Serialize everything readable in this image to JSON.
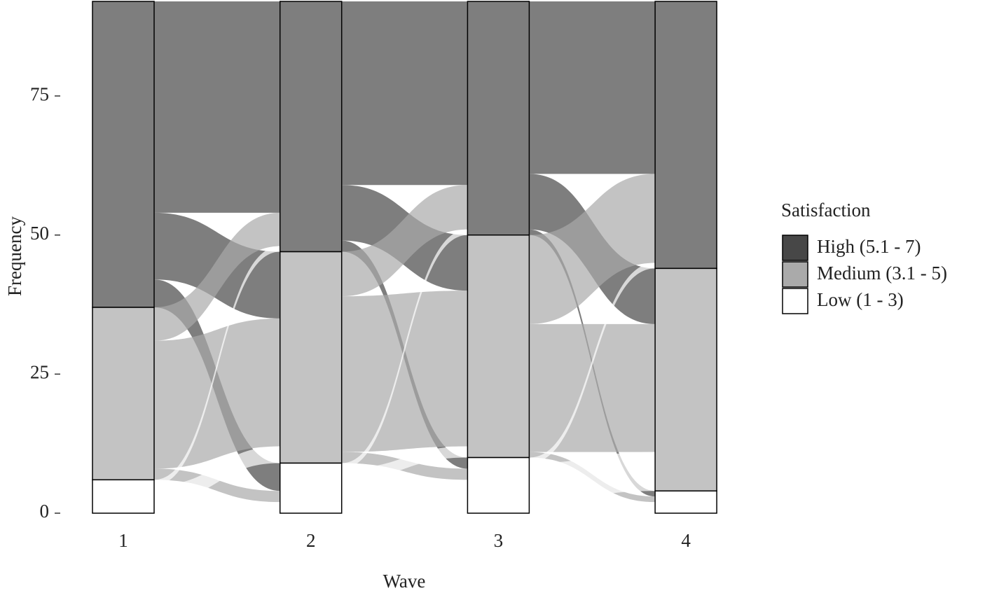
{
  "chart_data": {
    "type": "alluvial",
    "title": "Satisfaction",
    "xlabel": "Wave",
    "ylabel": "Frequency",
    "categories": [
      "1",
      "2",
      "3",
      "4"
    ],
    "ylim": [
      0,
      92
    ],
    "yticks": [
      0,
      25,
      50,
      75
    ],
    "alpha": 0.7,
    "strata": [
      {
        "name": "High (5.1 - 7)",
        "color": "#474747",
        "values": [
          55,
          45,
          42,
          48
        ]
      },
      {
        "name": "Medium (3.1 - 5)",
        "color": "#aaaaaa",
        "values": [
          31,
          38,
          40,
          40
        ]
      },
      {
        "name": "Low (1 - 3)",
        "color": "#ffffff",
        "values": [
          6,
          9,
          10,
          4
        ]
      }
    ],
    "flows": [
      [
        {
          "from": "High (5.1 - 7)",
          "to": "High (5.1 - 7)",
          "value": 38
        },
        {
          "from": "High (5.1 - 7)",
          "to": "Medium (3.1 - 5)",
          "value": 12
        },
        {
          "from": "High (5.1 - 7)",
          "to": "Low (1 - 3)",
          "value": 5
        },
        {
          "from": "Medium (3.1 - 5)",
          "to": "High (5.1 - 7)",
          "value": 6
        },
        {
          "from": "Medium (3.1 - 5)",
          "to": "Medium (3.1 - 5)",
          "value": 23
        },
        {
          "from": "Medium (3.1 - 5)",
          "to": "Low (1 - 3)",
          "value": 2
        },
        {
          "from": "Low (1 - 3)",
          "to": "High (5.1 - 7)",
          "value": 1
        },
        {
          "from": "Low (1 - 3)",
          "to": "Medium (3.1 - 5)",
          "value": 3
        },
        {
          "from": "Low (1 - 3)",
          "to": "Low (1 - 3)",
          "value": 2
        }
      ],
      [
        {
          "from": "High (5.1 - 7)",
          "to": "High (5.1 - 7)",
          "value": 33
        },
        {
          "from": "High (5.1 - 7)",
          "to": "Medium (3.1 - 5)",
          "value": 10
        },
        {
          "from": "High (5.1 - 7)",
          "to": "Low (1 - 3)",
          "value": 2
        },
        {
          "from": "Medium (3.1 - 5)",
          "to": "High (5.1 - 7)",
          "value": 8
        },
        {
          "from": "Medium (3.1 - 5)",
          "to": "Medium (3.1 - 5)",
          "value": 28
        },
        {
          "from": "Medium (3.1 - 5)",
          "to": "Low (1 - 3)",
          "value": 2
        },
        {
          "from": "Low (1 - 3)",
          "to": "High (5.1 - 7)",
          "value": 1
        },
        {
          "from": "Low (1 - 3)",
          "to": "Medium (3.1 - 5)",
          "value": 2
        },
        {
          "from": "Low (1 - 3)",
          "to": "Low (1 - 3)",
          "value": 6
        }
      ],
      [
        {
          "from": "High (5.1 - 7)",
          "to": "High (5.1 - 7)",
          "value": 31
        },
        {
          "from": "High (5.1 - 7)",
          "to": "Medium (3.1 - 5)",
          "value": 10
        },
        {
          "from": "High (5.1 - 7)",
          "to": "Low (1 - 3)",
          "value": 1
        },
        {
          "from": "Medium (3.1 - 5)",
          "to": "High (5.1 - 7)",
          "value": 16
        },
        {
          "from": "Medium (3.1 - 5)",
          "to": "Medium (3.1 - 5)",
          "value": 23
        },
        {
          "from": "Medium (3.1 - 5)",
          "to": "Low (1 - 3)",
          "value": 1
        },
        {
          "from": "Low (1 - 3)",
          "to": "High (5.1 - 7)",
          "value": 1
        },
        {
          "from": "Low (1 - 3)",
          "to": "Medium (3.1 - 5)",
          "value": 7
        },
        {
          "from": "Low (1 - 3)",
          "to": "Low (1 - 3)",
          "value": 2
        }
      ]
    ]
  }
}
